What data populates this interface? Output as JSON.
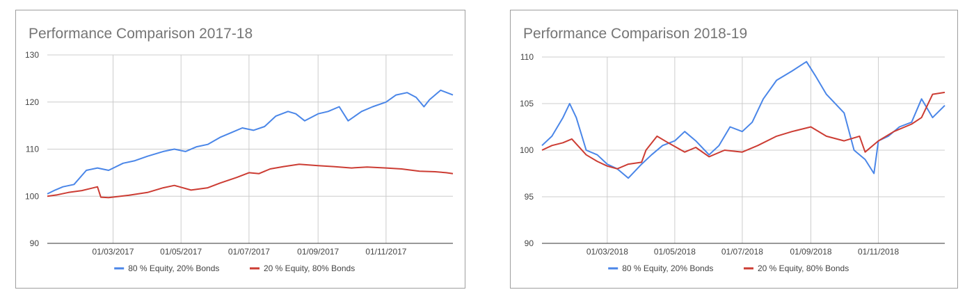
{
  "colors": {
    "equity_heavy": "#4a86e8",
    "bond_heavy": "#cc3c33",
    "grid": "#cccccc"
  },
  "chart_data": [
    {
      "type": "line",
      "title": "Performance Comparison 2017-18",
      "xlabel": "",
      "ylabel": "",
      "xlim": [
        "2017-01-01",
        "2017-12-31"
      ],
      "ylim": [
        90,
        130
      ],
      "y_ticks": [
        90,
        100,
        110,
        120,
        130
      ],
      "x_ticks": [
        {
          "date": "2017-03-01",
          "label": "01/03/2017"
        },
        {
          "date": "2017-05-01",
          "label": "01/05/2017"
        },
        {
          "date": "2017-07-01",
          "label": "01/07/2017"
        },
        {
          "date": "2017-09-01",
          "label": "01/09/2017"
        },
        {
          "date": "2017-11-01",
          "label": "01/11/2017"
        }
      ],
      "grid": true,
      "legend_position": "bottom",
      "series": [
        {
          "name": "80 % Equity, 20% Bonds",
          "color": "#4a86e8",
          "x": [
            "2017-01-01",
            "2017-01-08",
            "2017-01-15",
            "2017-01-25",
            "2017-02-05",
            "2017-02-15",
            "2017-02-25",
            "2017-03-10",
            "2017-03-20",
            "2017-04-01",
            "2017-04-15",
            "2017-04-25",
            "2017-05-05",
            "2017-05-15",
            "2017-05-25",
            "2017-06-05",
            "2017-06-15",
            "2017-06-25",
            "2017-07-05",
            "2017-07-15",
            "2017-07-25",
            "2017-08-05",
            "2017-08-12",
            "2017-08-20",
            "2017-09-01",
            "2017-09-10",
            "2017-09-20",
            "2017-09-28",
            "2017-10-10",
            "2017-10-20",
            "2017-11-01",
            "2017-11-10",
            "2017-11-20",
            "2017-11-28",
            "2017-12-05",
            "2017-12-10",
            "2017-12-20",
            "2017-12-31"
          ],
          "y": [
            100.5,
            101.3,
            102.0,
            102.5,
            105.5,
            106.0,
            105.5,
            107.0,
            107.5,
            108.5,
            109.5,
            110.0,
            109.5,
            110.5,
            111.0,
            112.5,
            113.5,
            114.5,
            114.0,
            114.8,
            117.0,
            118.0,
            117.5,
            116.0,
            117.5,
            118.0,
            119.0,
            116.0,
            118.0,
            119.0,
            120.0,
            121.5,
            122.0,
            121.0,
            119.0,
            120.5,
            122.5,
            121.5
          ]
        },
        {
          "name": "20 % Equity, 80% Bonds",
          "color": "#cc3c33",
          "x": [
            "2017-01-01",
            "2017-01-10",
            "2017-01-20",
            "2017-02-01",
            "2017-02-15",
            "2017-02-18",
            "2017-02-25",
            "2017-03-15",
            "2017-04-01",
            "2017-04-15",
            "2017-04-25",
            "2017-05-10",
            "2017-05-25",
            "2017-06-05",
            "2017-06-20",
            "2017-07-01",
            "2017-07-10",
            "2017-07-20",
            "2017-08-01",
            "2017-08-15",
            "2017-09-01",
            "2017-09-15",
            "2017-10-01",
            "2017-10-15",
            "2017-11-01",
            "2017-11-15",
            "2017-12-01",
            "2017-12-15",
            "2017-12-25",
            "2017-12-31"
          ],
          "y": [
            100.0,
            100.3,
            100.8,
            101.2,
            102.0,
            99.8,
            99.7,
            100.2,
            100.8,
            101.8,
            102.3,
            101.3,
            101.8,
            102.8,
            104.0,
            105.0,
            104.8,
            105.8,
            106.3,
            106.8,
            106.5,
            106.3,
            106.0,
            106.2,
            106.0,
            105.8,
            105.3,
            105.2,
            105.0,
            104.8
          ]
        }
      ]
    },
    {
      "type": "line",
      "title": "Performance Comparison 2018-19",
      "xlabel": "",
      "ylabel": "",
      "xlim": [
        "2018-01-01",
        "2018-12-31"
      ],
      "ylim": [
        90,
        110
      ],
      "y_ticks": [
        90,
        95,
        100,
        105,
        110
      ],
      "x_ticks": [
        {
          "date": "2018-03-01",
          "label": "01/03/2018"
        },
        {
          "date": "2018-05-01",
          "label": "01/05/2018"
        },
        {
          "date": "2018-07-01",
          "label": "01/07/2018"
        },
        {
          "date": "2018-09-01",
          "label": "01/09/2018"
        },
        {
          "date": "2018-11-01",
          "label": "01/11/2018"
        }
      ],
      "grid": true,
      "legend_position": "bottom",
      "series": [
        {
          "name": "80 % Equity, 20% Bonds",
          "color": "#4a86e8",
          "x": [
            "2018-01-01",
            "2018-01-10",
            "2018-01-20",
            "2018-01-26",
            "2018-02-01",
            "2018-02-10",
            "2018-02-20",
            "2018-03-01",
            "2018-03-10",
            "2018-03-20",
            "2018-04-01",
            "2018-04-10",
            "2018-04-20",
            "2018-05-01",
            "2018-05-10",
            "2018-05-20",
            "2018-06-01",
            "2018-06-10",
            "2018-06-20",
            "2018-07-01",
            "2018-07-10",
            "2018-07-20",
            "2018-08-01",
            "2018-08-15",
            "2018-08-28",
            "2018-09-05",
            "2018-09-15",
            "2018-10-01",
            "2018-10-10",
            "2018-10-20",
            "2018-10-28",
            "2018-11-01",
            "2018-11-10",
            "2018-11-20",
            "2018-12-01",
            "2018-12-10",
            "2018-12-20",
            "2018-12-31"
          ],
          "y": [
            100.5,
            101.5,
            103.5,
            105.0,
            103.5,
            100.0,
            99.5,
            98.5,
            98.0,
            97.0,
            98.5,
            99.5,
            100.5,
            101.0,
            102.0,
            101.0,
            99.5,
            100.5,
            102.5,
            102.0,
            103.0,
            105.5,
            107.5,
            108.5,
            109.5,
            108.0,
            106.0,
            104.0,
            100.0,
            99.0,
            97.5,
            101.0,
            101.5,
            102.5,
            103.0,
            105.5,
            103.5,
            104.8
          ]
        },
        {
          "name": "20 % Equity, 80% Bonds",
          "color": "#cc3c33",
          "x": [
            "2018-01-01",
            "2018-01-10",
            "2018-01-20",
            "2018-01-28",
            "2018-02-10",
            "2018-02-20",
            "2018-03-01",
            "2018-03-10",
            "2018-03-20",
            "2018-04-01",
            "2018-04-05",
            "2018-04-15",
            "2018-04-25",
            "2018-05-10",
            "2018-05-20",
            "2018-06-01",
            "2018-06-15",
            "2018-07-01",
            "2018-07-15",
            "2018-08-01",
            "2018-08-15",
            "2018-09-01",
            "2018-09-15",
            "2018-10-01",
            "2018-10-15",
            "2018-10-20",
            "2018-11-01",
            "2018-11-15",
            "2018-12-01",
            "2018-12-10",
            "2018-12-20",
            "2018-12-31"
          ],
          "y": [
            100.0,
            100.5,
            100.8,
            101.2,
            99.5,
            98.8,
            98.3,
            98.0,
            98.5,
            98.7,
            100.0,
            101.5,
            100.8,
            99.8,
            100.3,
            99.3,
            100.0,
            99.8,
            100.5,
            101.5,
            102.0,
            102.5,
            101.5,
            101.0,
            101.5,
            99.8,
            101.0,
            102.0,
            102.8,
            103.5,
            106.0,
            106.2
          ]
        }
      ]
    }
  ]
}
